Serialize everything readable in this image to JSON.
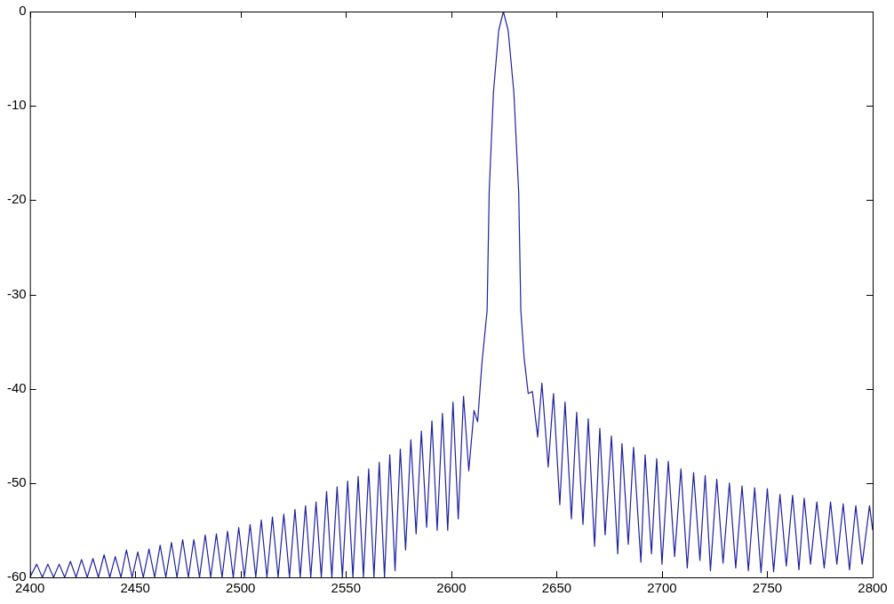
{
  "chart_data": {
    "type": "line",
    "color": "#2020a0",
    "marker": "none",
    "line_style": "solid",
    "xlim": [
      2400,
      2800
    ],
    "xticks": [
      2400,
      2450,
      2500,
      2550,
      2600,
      2650,
      2700,
      2750,
      2800
    ],
    "ylim": [
      -60,
      0
    ],
    "yticks": [
      -60,
      -50,
      -40,
      -30,
      -20,
      -10,
      0
    ],
    "x": [
      2400,
      2403.2,
      2405.9,
      2408.5,
      2411.2,
      2413.9,
      2416.5,
      2419.2,
      2421.9,
      2424.5,
      2427.2,
      2429.9,
      2432.5,
      2435.2,
      2437.9,
      2440.5,
      2443.2,
      2445.8,
      2448.5,
      2451.2,
      2453.8,
      2456.5,
      2459.2,
      2461.8,
      2464.5,
      2467.2,
      2469.8,
      2472.5,
      2475.2,
      2477.8,
      2480.5,
      2483.2,
      2485.8,
      2488.5,
      2491.2,
      2493.8,
      2496.5,
      2499.1,
      2501.8,
      2504.5,
      2507.2,
      2509.8,
      2512.5,
      2515.1,
      2517.8,
      2520.5,
      2523.2,
      2525.8,
      2528.3,
      2530.8,
      2533.3,
      2535.8,
      2538.3,
      2540.8,
      2543.3,
      2545.8,
      2548.3,
      2550.8,
      2553.3,
      2555.8,
      2558.3,
      2560.8,
      2563.3,
      2565.8,
      2568.3,
      2570.8,
      2573.3,
      2575.8,
      2578.3,
      2580.8,
      2583.3,
      2585.8,
      2588.3,
      2590.8,
      2593.3,
      2595.8,
      2598.3,
      2600.8,
      2603.3,
      2605.8,
      2608.3,
      2610.8,
      2612.5,
      2614.5,
      2617,
      2618,
      2620,
      2622.5,
      2624.7,
      2627,
      2629.7,
      2632,
      2633,
      2634.6,
      2636.5,
      2638.5,
      2641,
      2643,
      2646,
      2648.5,
      2651.5,
      2654,
      2657,
      2659.5,
      2662.5,
      2665,
      2668,
      2670.5,
      2673,
      2676,
      2679,
      2681,
      2684,
      2686.5,
      2690,
      2692,
      2695,
      2697.5,
      2700,
      2703,
      2706,
      2709,
      2712,
      2715,
      2718,
      2720.5,
      2723,
      2726,
      2729,
      2732,
      2735,
      2738,
      2741,
      2744,
      2747,
      2750,
      2753,
      2756,
      2759,
      2762,
      2765,
      2767.5,
      2770.5,
      2773.5,
      2777,
      2780,
      2783,
      2786,
      2789,
      2792,
      2795,
      2798.5,
      2800
    ],
    "values": [
      -60,
      -58.6,
      -60,
      -58.6,
      -60,
      -58.6,
      -60,
      -58.3,
      -60,
      -58.1,
      -60,
      -58,
      -60,
      -57.6,
      -60,
      -57.8,
      -60,
      -57.1,
      -60,
      -57.3,
      -60,
      -57,
      -60,
      -56.6,
      -60,
      -56.3,
      -60,
      -56,
      -60,
      -56,
      -60,
      -55.5,
      -60,
      -55.4,
      -60,
      -55.1,
      -60,
      -54.7,
      -60,
      -54.4,
      -60,
      -53.9,
      -60,
      -53.6,
      -60,
      -53.3,
      -60,
      -52.8,
      -60,
      -52.4,
      -60,
      -52,
      -60,
      -50.9,
      -60,
      -50.4,
      -60,
      -49.8,
      -60,
      -49.3,
      -60,
      -48.5,
      -60,
      -47.8,
      -60,
      -47,
      -59.3,
      -46.4,
      -57.1,
      -45.4,
      -55.4,
      -44.5,
      -54.7,
      -43.4,
      -55,
      -42.6,
      -55,
      -41.4,
      -53.8,
      -40.8,
      -48.7,
      -42.3,
      -43.5,
      -37.4,
      -31.7,
      -19,
      -8.6,
      -2,
      0,
      -2,
      -8.6,
      -19.2,
      -31.7,
      -36.8,
      -40.5,
      -40.3,
      -45.1,
      -39.4,
      -48.3,
      -40.5,
      -52.3,
      -41.4,
      -53.8,
      -42.5,
      -54.4,
      -43.2,
      -56.7,
      -44.2,
      -55.5,
      -45,
      -57.5,
      -45.8,
      -56.5,
      -46.2,
      -58.4,
      -47,
      -57.5,
      -47.4,
      -58.6,
      -47.7,
      -57.8,
      -48.5,
      -59,
      -48.9,
      -58.2,
      -49.2,
      -59.3,
      -49.6,
      -58.5,
      -50,
      -59,
      -50.3,
      -59.3,
      -50.5,
      -59.5,
      -50.6,
      -59.4,
      -51.2,
      -58.8,
      -51.3,
      -59.2,
      -51.6,
      -58.6,
      -52,
      -59,
      -52,
      -58.6,
      -52.2,
      -59.2,
      -52.4,
      -58.6,
      -52.4,
      -55
    ]
  }
}
